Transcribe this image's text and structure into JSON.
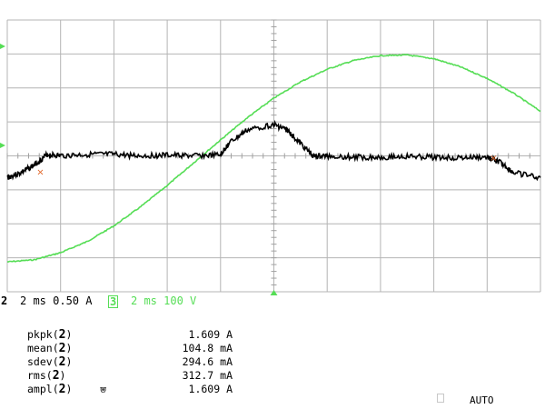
{
  "chart_data": {
    "type": "line",
    "title": "",
    "grid": true,
    "x_unit_per_div": "2 ms",
    "x_divisions": 10,
    "y_divisions": 8,
    "xlim_ms": [
      0,
      20
    ],
    "series": [
      {
        "channel": "2",
        "color": "#000000",
        "scale_per_div": "0.50 A",
        "x_ms": [
          0,
          0.5,
          1,
          1.5,
          2,
          3,
          4,
          5,
          6,
          7,
          8,
          8.3,
          9,
          10,
          10.5,
          11,
          11.5,
          12,
          13,
          14,
          15,
          16,
          17,
          18,
          18.5,
          19,
          20
        ],
        "y_A": [
          -0.32,
          -0.25,
          -0.14,
          0.02,
          0.0,
          0.02,
          0.02,
          0.0,
          0.01,
          0.0,
          0.01,
          0.18,
          0.38,
          0.46,
          0.38,
          0.18,
          -0.01,
          0.0,
          -0.02,
          -0.02,
          -0.01,
          -0.02,
          -0.03,
          -0.02,
          -0.1,
          -0.25,
          -0.32
        ]
      },
      {
        "channel": "3",
        "color": "#55dd55",
        "scale_per_div": "100 V",
        "x_ms": [
          0,
          1,
          2,
          3,
          4,
          5,
          6,
          7,
          8,
          9,
          10,
          11,
          12,
          13,
          14,
          15,
          16,
          17,
          18,
          19,
          20
        ],
        "y_V": [
          -312,
          -306,
          -285,
          -252,
          -206,
          -150,
          -87,
          -20,
          47,
          112,
          170,
          218,
          255,
          281,
          295,
          297,
          286,
          262,
          228,
          184,
          131
        ]
      }
    ]
  },
  "status": {
    "ch2_number": "2",
    "ch2_settings": "2 ms 0.50 A",
    "ch3_number": "3",
    "ch3_settings": "2 ms 100 V"
  },
  "measurements": [
    {
      "name": "pkpk",
      "channel": "2",
      "glyph": "",
      "value": "1.609 A"
    },
    {
      "name": "mean",
      "channel": "2",
      "glyph": "",
      "value": "104.8 mA"
    },
    {
      "name": "sdev",
      "channel": "2",
      "glyph": "",
      "value": "294.6 mA"
    },
    {
      "name": "rms",
      "channel": "2",
      "glyph": "",
      "value": "312.7 mA"
    },
    {
      "name": "ampl",
      "channel": "2",
      "glyph": "⩐",
      "value": "1.609 A"
    }
  ],
  "trigger_mode": "AUTO"
}
